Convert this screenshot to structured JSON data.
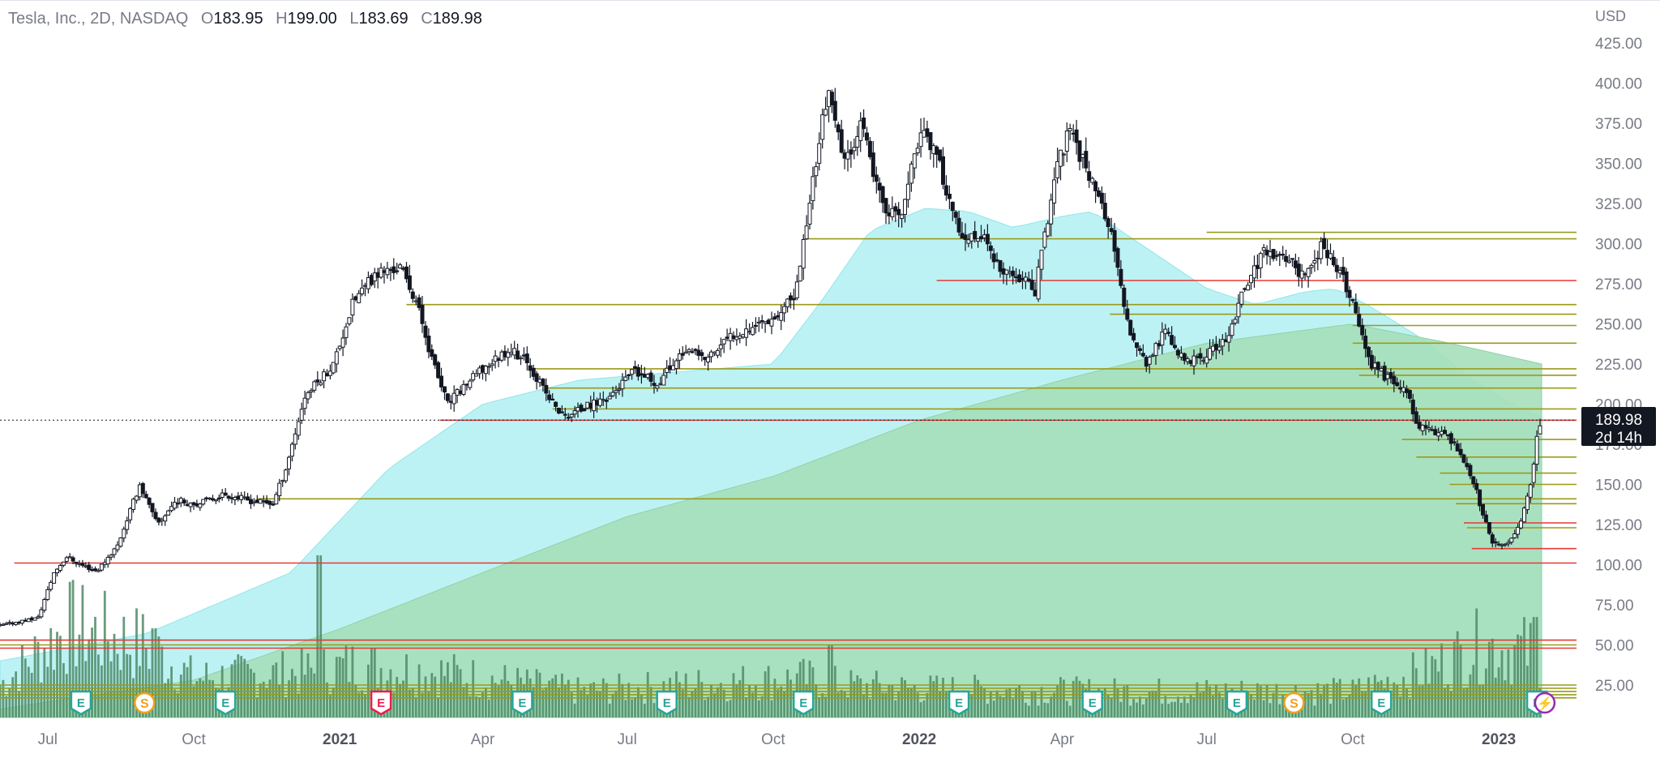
{
  "legend": {
    "symbol": "Tesla, Inc., 2D, NASDAQ",
    "open_label": "O",
    "open": "183.95",
    "high_label": "H",
    "high": "199.00",
    "low_label": "L",
    "low": "183.69",
    "close_label": "C",
    "close": "189.98"
  },
  "price_tag": {
    "price": "189.98",
    "countdown": "2d 14h"
  },
  "chart_data": {
    "type": "candlestick",
    "title": "Tesla, Inc., 2D, NASDAQ",
    "currency": "USD",
    "ylim": [
      10,
      435
    ],
    "y_ticks": [
      25,
      50,
      75,
      100,
      125,
      150,
      175,
      200,
      225,
      250,
      275,
      300,
      325,
      350,
      375,
      400,
      425
    ],
    "y_tick_labels": [
      "25.00",
      "50.00",
      "75.00",
      "100.00",
      "125.00",
      "150.00",
      "175.00",
      "200.00",
      "225.00",
      "250.00",
      "275.00",
      "300.00",
      "325.00",
      "350.00",
      "375.00",
      "400.00",
      "425.00"
    ],
    "x_range": [
      "2020-06-01",
      "2023-01-28"
    ],
    "x_ticks": [
      {
        "date": "2020-07-01",
        "label": "Jul",
        "bold": false
      },
      {
        "date": "2020-10-01",
        "label": "Oct",
        "bold": false
      },
      {
        "date": "2021-01-01",
        "label": "2021",
        "bold": true
      },
      {
        "date": "2021-04-01",
        "label": "Apr",
        "bold": false
      },
      {
        "date": "2021-07-01",
        "label": "Jul",
        "bold": false
      },
      {
        "date": "2021-10-01",
        "label": "Oct",
        "bold": false
      },
      {
        "date": "2022-01-01",
        "label": "2022",
        "bold": true
      },
      {
        "date": "2022-04-01",
        "label": "Apr",
        "bold": false
      },
      {
        "date": "2022-07-01",
        "label": "Jul",
        "bold": false
      },
      {
        "date": "2022-10-01",
        "label": "Oct",
        "bold": false
      },
      {
        "date": "2023-01-01",
        "label": "2023",
        "bold": true
      }
    ],
    "price_keypoints": [
      [
        "2020-06-01",
        62
      ],
      [
        "2020-06-25",
        67
      ],
      [
        "2020-07-05",
        95
      ],
      [
        "2020-07-13",
        105
      ],
      [
        "2020-07-22",
        100
      ],
      [
        "2020-08-01",
        96
      ],
      [
        "2020-08-14",
        112
      ],
      [
        "2020-08-28",
        150
      ],
      [
        "2020-09-08",
        125
      ],
      [
        "2020-09-20",
        140
      ],
      [
        "2020-10-05",
        138
      ],
      [
        "2020-10-20",
        144
      ],
      [
        "2020-11-05",
        140
      ],
      [
        "2020-11-20",
        138
      ],
      [
        "2020-11-28",
        160
      ],
      [
        "2020-12-10",
        205
      ],
      [
        "2020-12-28",
        225
      ],
      [
        "2021-01-10",
        265
      ],
      [
        "2021-01-25",
        282
      ],
      [
        "2021-02-08",
        285
      ],
      [
        "2021-02-18",
        265
      ],
      [
        "2021-03-01",
        225
      ],
      [
        "2021-03-10",
        200
      ],
      [
        "2021-03-22",
        213
      ],
      [
        "2021-04-05",
        225
      ],
      [
        "2021-04-18",
        235
      ],
      [
        "2021-04-30",
        225
      ],
      [
        "2021-05-12",
        205
      ],
      [
        "2021-05-22",
        192
      ],
      [
        "2021-06-05",
        198
      ],
      [
        "2021-06-20",
        205
      ],
      [
        "2021-07-05",
        220
      ],
      [
        "2021-07-20",
        213
      ],
      [
        "2021-08-05",
        233
      ],
      [
        "2021-08-20",
        228
      ],
      [
        "2021-09-05",
        243
      ],
      [
        "2021-09-20",
        250
      ],
      [
        "2021-10-05",
        256
      ],
      [
        "2021-10-15",
        268
      ],
      [
        "2021-10-26",
        340
      ],
      [
        "2021-11-04",
        395
      ],
      [
        "2021-11-15",
        350
      ],
      [
        "2021-11-25",
        375
      ],
      [
        "2021-12-08",
        325
      ],
      [
        "2021-12-20",
        315
      ],
      [
        "2022-01-03",
        375
      ],
      [
        "2022-01-15",
        345
      ],
      [
        "2022-01-28",
        300
      ],
      [
        "2022-02-10",
        305
      ],
      [
        "2022-02-22",
        280
      ],
      [
        "2022-03-05",
        280
      ],
      [
        "2022-03-15",
        270
      ],
      [
        "2022-03-28",
        345
      ],
      [
        "2022-04-05",
        370
      ],
      [
        "2022-04-20",
        340
      ],
      [
        "2022-05-01",
        310
      ],
      [
        "2022-05-12",
        250
      ],
      [
        "2022-05-24",
        225
      ],
      [
        "2022-06-05",
        245
      ],
      [
        "2022-06-18",
        225
      ],
      [
        "2022-07-01",
        230
      ],
      [
        "2022-07-14",
        240
      ],
      [
        "2022-07-26",
        275
      ],
      [
        "2022-08-06",
        295
      ],
      [
        "2022-08-20",
        290
      ],
      [
        "2022-09-01",
        280
      ],
      [
        "2022-09-12",
        300
      ],
      [
        "2022-09-24",
        280
      ],
      [
        "2022-10-01",
        262
      ],
      [
        "2022-10-12",
        225
      ],
      [
        "2022-10-24",
        215
      ],
      [
        "2022-11-03",
        210
      ],
      [
        "2022-11-12",
        185
      ],
      [
        "2022-11-24",
        183
      ],
      [
        "2022-12-05",
        175
      ],
      [
        "2022-12-15",
        155
      ],
      [
        "2022-12-27",
        115
      ],
      [
        "2023-01-06",
        112
      ],
      [
        "2023-01-14",
        123
      ],
      [
        "2023-01-20",
        145
      ],
      [
        "2023-01-25",
        178
      ],
      [
        "2023-01-28",
        190
      ]
    ],
    "ma_long_keypoints": [
      [
        "2020-06-01",
        40
      ],
      [
        "2020-09-01",
        57
      ],
      [
        "2020-12-01",
        95
      ],
      [
        "2021-02-01",
        160
      ],
      [
        "2021-04-01",
        200
      ],
      [
        "2021-06-01",
        215
      ],
      [
        "2021-08-01",
        220
      ],
      [
        "2021-10-01",
        225
      ],
      [
        "2021-11-01",
        265
      ],
      [
        "2021-12-01",
        308
      ],
      [
        "2022-01-05",
        322
      ],
      [
        "2022-02-01",
        320
      ],
      [
        "2022-03-01",
        310
      ],
      [
        "2022-04-01",
        317
      ],
      [
        "2022-04-20",
        320
      ],
      [
        "2022-05-20",
        300
      ],
      [
        "2022-07-01",
        272
      ],
      [
        "2022-08-01",
        262
      ],
      [
        "2022-09-01",
        270
      ],
      [
        "2022-09-20",
        272
      ],
      [
        "2022-10-10",
        262
      ],
      [
        "2022-11-15",
        240
      ],
      [
        "2022-12-15",
        215
      ],
      [
        "2023-01-15",
        197
      ],
      [
        "2023-01-28",
        192
      ]
    ],
    "ma_vlong_keypoints": [
      [
        "2020-06-01",
        10
      ],
      [
        "2020-10-01",
        28
      ],
      [
        "2021-01-01",
        60
      ],
      [
        "2021-04-01",
        95
      ],
      [
        "2021-07-01",
        130
      ],
      [
        "2021-10-01",
        155
      ],
      [
        "2022-01-01",
        190
      ],
      [
        "2022-04-01",
        215
      ],
      [
        "2022-07-01",
        238
      ],
      [
        "2022-10-01",
        250
      ],
      [
        "2022-12-01",
        238
      ],
      [
        "2023-01-28",
        225
      ]
    ],
    "volume_keypoints": [
      [
        "2020-06-01",
        0.25
      ],
      [
        "2020-07-15",
        0.7
      ],
      [
        "2020-09-01",
        0.55
      ],
      [
        "2020-10-01",
        0.3
      ],
      [
        "2020-12-15",
        0.35
      ],
      [
        "2021-01-10",
        0.4
      ],
      [
        "2021-03-01",
        0.35
      ],
      [
        "2021-06-01",
        0.2
      ],
      [
        "2021-10-20",
        0.3
      ],
      [
        "2021-11-15",
        0.25
      ],
      [
        "2022-01-01",
        0.22
      ],
      [
        "2022-05-01",
        0.2
      ],
      [
        "2022-10-01",
        0.2
      ],
      [
        "2022-11-15",
        0.35
      ],
      [
        "2022-12-20",
        0.55
      ],
      [
        "2023-01-28",
        0.5
      ]
    ],
    "volume_spikes": [
      [
        "2020-09-06",
        0.55
      ],
      [
        "2020-12-19",
        1.0
      ],
      [
        "2021-11-06",
        0.45
      ],
      [
        "2023-01-24",
        0.62
      ]
    ],
    "horizontal_levels": [
      {
        "price": 303,
        "color": "#9a9a1a",
        "from": "2021-10-22"
      },
      {
        "price": 307,
        "color": "#9a9a1a",
        "from": "2022-07-01"
      },
      {
        "price": 277,
        "color": "#e53935",
        "from": "2022-01-12"
      },
      {
        "price": 262,
        "color": "#9a9a1a",
        "from": "2021-02-12"
      },
      {
        "price": 256,
        "color": "#9a9a1a",
        "from": "2022-05-01"
      },
      {
        "price": 249,
        "color": "#9a9a1a",
        "from": "2022-10-01"
      },
      {
        "price": 238,
        "color": "#9a9a1a",
        "from": "2022-10-01"
      },
      {
        "price": 222,
        "color": "#9a9a1a",
        "from": "2021-05-01"
      },
      {
        "price": 218,
        "color": "#9a9a1a",
        "from": "2022-10-05"
      },
      {
        "price": 210,
        "color": "#9a9a1a",
        "from": "2021-05-10"
      },
      {
        "price": 197,
        "color": "#9a9a1a",
        "from": "2021-05-15"
      },
      {
        "price": 190,
        "color": "#e53935",
        "from": "2021-03-05"
      },
      {
        "price": 178,
        "color": "#9a9a1a",
        "from": "2022-11-01"
      },
      {
        "price": 167,
        "color": "#9a9a1a",
        "from": "2022-11-10"
      },
      {
        "price": 157,
        "color": "#9a9a1a",
        "from": "2022-11-25"
      },
      {
        "price": 150,
        "color": "#9a9a1a",
        "from": "2022-12-01"
      },
      {
        "price": 141,
        "color": "#9a9a1a",
        "from": "2020-11-10"
      },
      {
        "price": 138,
        "color": "#9a9a1a",
        "from": "2022-12-05"
      },
      {
        "price": 126,
        "color": "#e53935",
        "from": "2022-12-10"
      },
      {
        "price": 123,
        "color": "#9a9a1a",
        "from": "2022-12-12"
      },
      {
        "price": 110,
        "color": "#e53935",
        "from": "2022-12-15"
      },
      {
        "price": 101,
        "color": "#e53935",
        "from": "2020-06-10"
      },
      {
        "price": 53,
        "color": "#e53935",
        "from": "2020-06-01"
      },
      {
        "price": 50,
        "color": "#9a9a1a",
        "from": "2020-06-01"
      },
      {
        "price": 48,
        "color": "#e53935",
        "from": "2020-06-01"
      },
      {
        "price": 25,
        "color": "#9a9a1a",
        "from": "2020-06-01"
      },
      {
        "price": 23,
        "color": "#9a9a1a",
        "from": "2020-06-01"
      },
      {
        "price": 21,
        "color": "#9a9a1a",
        "from": "2020-06-01"
      },
      {
        "price": 19,
        "color": "#9a9a1a",
        "from": "2020-06-01"
      },
      {
        "price": 17,
        "color": "#9a9a1a",
        "from": "2020-06-01"
      }
    ],
    "events": [
      {
        "date": "2020-07-22",
        "label": "E",
        "kind": "earnings"
      },
      {
        "date": "2020-08-31",
        "label": "S",
        "kind": "split"
      },
      {
        "date": "2020-10-21",
        "label": "E",
        "kind": "earnings"
      },
      {
        "date": "2021-01-27",
        "label": "E",
        "kind": "earnings-miss"
      },
      {
        "date": "2021-04-26",
        "label": "E",
        "kind": "earnings"
      },
      {
        "date": "2021-07-26",
        "label": "E",
        "kind": "earnings"
      },
      {
        "date": "2021-10-20",
        "label": "E",
        "kind": "earnings"
      },
      {
        "date": "2022-01-26",
        "label": "E",
        "kind": "earnings"
      },
      {
        "date": "2022-04-20",
        "label": "E",
        "kind": "earnings"
      },
      {
        "date": "2022-07-20",
        "label": "E",
        "kind": "earnings"
      },
      {
        "date": "2022-08-25",
        "label": "S",
        "kind": "split"
      },
      {
        "date": "2022-10-19",
        "label": "E",
        "kind": "earnings"
      },
      {
        "date": "2023-01-25",
        "label": "E",
        "kind": "earnings"
      },
      {
        "date": "2023-01-30",
        "label": "⚡",
        "kind": "flash"
      }
    ],
    "last_price": 189.98,
    "colors": {
      "candle": "#131722",
      "ma_long_fill": "#b2f0f2",
      "ma_vlong_fill": "#a5dfba",
      "volume": "#4f8a66",
      "earnings": "#26a69a",
      "earnings_miss": "#e91e4d",
      "split": "#f0a020",
      "flash": "#9c27b0",
      "axis_text": "#787b86"
    }
  }
}
